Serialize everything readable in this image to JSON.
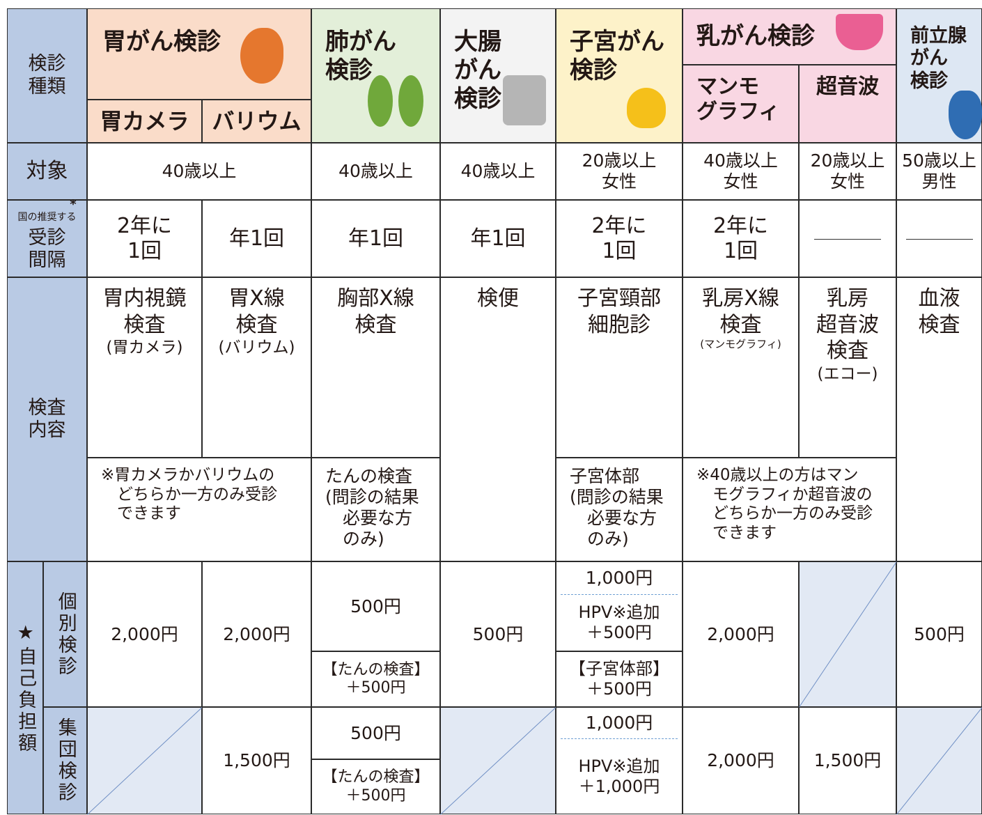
{
  "header": {
    "kind": "検診\n種類",
    "stomach": {
      "title": "胃がん検診",
      "camera": "胃カメラ",
      "barium": "バリウム"
    },
    "lung": "肺がん\n検診",
    "colon": "大腸\nがん\n検診",
    "uterus": "子宮がん\n検診",
    "breast": {
      "title": "乳がん検診",
      "mammo": "マンモ\nグラフィ",
      "echo": "超音波"
    },
    "prostate": "前立腺\nがん\n検診"
  },
  "target": {
    "label": "対象",
    "cells": [
      "40歳以上",
      "40歳以上",
      "40歳以上",
      "20歳以上\n女性",
      "40歳以上\n女性",
      "20歳以上\n女性",
      "50歳以上\n男性"
    ]
  },
  "interval": {
    "note": "国の推奨する",
    "asterisk": "*",
    "label": "受診\n間隔",
    "cells": [
      "2年に\n1回",
      "年1回",
      "年1回",
      "年1回",
      "2年に\n1回",
      "2年に\n1回"
    ]
  },
  "content": {
    "label": "検査\n内容",
    "tests": [
      {
        "name": "胃内視鏡\n検査",
        "sub": "(胃カメラ)"
      },
      {
        "name": "胃X線\n検査",
        "sub": "(バリウム)"
      },
      {
        "name": "胸部X線\n検査"
      },
      {
        "name": "検便"
      },
      {
        "name": "子宮頸部\n細胞診"
      },
      {
        "name": "乳房X線\n検査",
        "sub": "(マンモグラフィ)"
      },
      {
        "name": "乳房\n超音波\n検査",
        "sub": "(エコー)"
      },
      {
        "name": "血液\n検査"
      }
    ],
    "notes": [
      "※胃カメラかバリウムの\n　どちらか一方のみ受診\n　できます",
      "たんの検査\n(問診の結果\n　必要な方\n　のみ)",
      "子宮体部\n(問診の結果\n　必要な方\n　のみ)",
      "※40歳以上の方はマン\n　モグラフィか超音波の\n　どちらか一方のみ受診\n　できます"
    ]
  },
  "cost": {
    "label": "★自己負担額",
    "individual": {
      "label": "個別検診",
      "cells": [
        "2,000円",
        "2,000円",
        "500円",
        "【たんの検査】\n＋500円",
        "500円",
        "1,000円",
        "HPV※追加\n＋500円",
        "【子宮体部】\n＋500円",
        "2,000円",
        "500円"
      ]
    },
    "group": {
      "label": "集団検診",
      "cells": [
        "1,500円",
        "500円",
        "【たんの検査】\n＋500円",
        "1,000円",
        "HPV※追加\n＋1,000円",
        "2,000円",
        "1,500円"
      ]
    }
  }
}
